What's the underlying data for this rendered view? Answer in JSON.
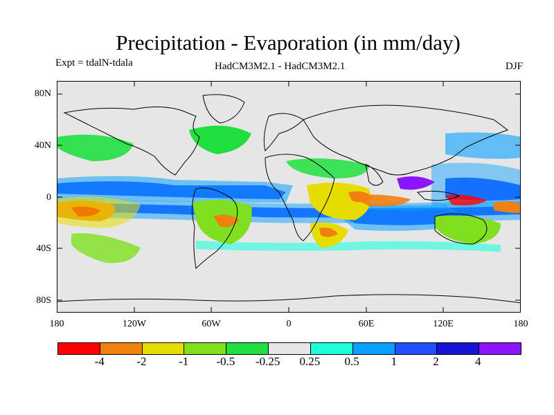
{
  "title": "Precipitation - Evaporation (in mm/day)",
  "labels": {
    "expt": "Expt = tdalN-tdala",
    "model": "HadCM3M2.1 - HadCM3M2.1",
    "season": "DJF"
  },
  "map": {
    "lat_ticks": [
      "80N",
      "40N",
      "0",
      "40S",
      "80S"
    ],
    "lon_ticks": [
      "180",
      "120W",
      "60W",
      "0",
      "60E",
      "120E",
      "180"
    ]
  },
  "colorbar": {
    "colors": [
      "#ff0000",
      "#f08010",
      "#e6dc00",
      "#80e020",
      "#20e040",
      "#e6e6e6",
      "#20ffdc",
      "#0aa0ff",
      "#2050ff",
      "#1414d2",
      "#8c14ff"
    ],
    "labels": [
      "-4",
      "-2",
      "-1",
      "-0.5",
      "-0.25",
      "0.25",
      "0.5",
      "1",
      "2",
      "4"
    ]
  }
}
